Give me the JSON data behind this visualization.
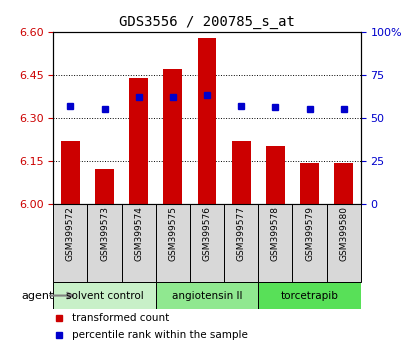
{
  "title": "GDS3556 / 200785_s_at",
  "samples": [
    "GSM399572",
    "GSM399573",
    "GSM399574",
    "GSM399575",
    "GSM399576",
    "GSM399577",
    "GSM399578",
    "GSM399579",
    "GSM399580"
  ],
  "transformed_counts": [
    6.22,
    6.12,
    6.44,
    6.47,
    6.58,
    6.22,
    6.2,
    6.14,
    6.14
  ],
  "percentile_ranks": [
    57,
    55,
    62,
    62,
    63,
    57,
    56,
    55,
    55
  ],
  "ylim_left": [
    6.0,
    6.6
  ],
  "ylim_right": [
    0,
    100
  ],
  "yticks_left": [
    6.0,
    6.15,
    6.3,
    6.45,
    6.6
  ],
  "yticks_right": [
    0,
    25,
    50,
    75,
    100
  ],
  "bar_color": "#cc0000",
  "dot_color": "#0000cc",
  "groups": [
    {
      "label": "solvent control",
      "indices": [
        0,
        1,
        2
      ],
      "color": "#c8f0c8"
    },
    {
      "label": "angiotensin II",
      "indices": [
        3,
        4,
        5
      ],
      "color": "#90e890"
    },
    {
      "label": "torcetrapib",
      "indices": [
        6,
        7,
        8
      ],
      "color": "#58e058"
    }
  ],
  "agent_label": "agent",
  "legend_bar_label": "transformed count",
  "legend_dot_label": "percentile rank within the sample",
  "tick_label_color_left": "#cc0000",
  "tick_label_color_right": "#0000cc",
  "bar_bottom": 6.0,
  "sample_box_color": "#d8d8d8",
  "bar_width": 0.55
}
